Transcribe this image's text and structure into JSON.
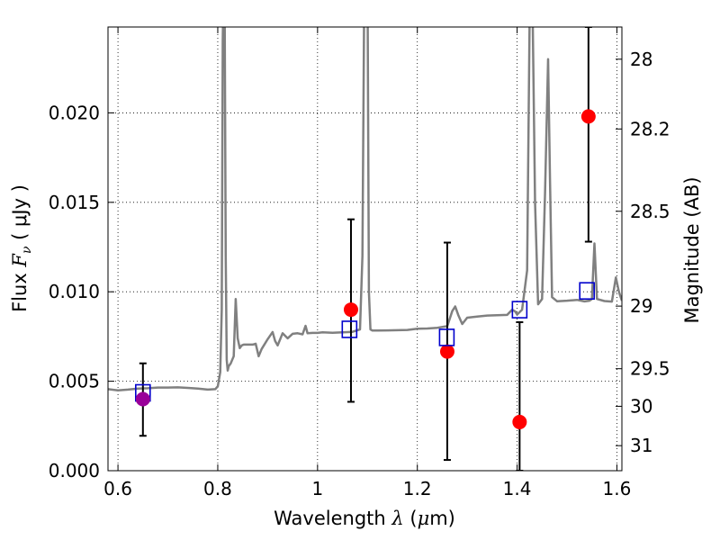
{
  "chart_data": {
    "type": "scatter",
    "title": "",
    "xlabel": {
      "prefix": "Wavelength  ",
      "sym": "λ",
      "open": " (",
      "mu": "μ",
      "unit": "m)"
    },
    "ylabel": {
      "prefix": "Flux  ",
      "sym": "F",
      "sub": "ν",
      "unit": "  ( μJy )"
    },
    "y2label": "Magnitude (AB)",
    "xlim": [
      0.58,
      1.61
    ],
    "ylim": [
      0.0,
      0.0248
    ],
    "grid": true,
    "x_ticks": [
      0.6,
      0.8,
      1.0,
      1.2,
      1.4,
      1.6
    ],
    "x_tick_labels": [
      "0.6",
      "0.8",
      "1",
      "1.2",
      "1.4",
      "1.6"
    ],
    "y_ticks": [
      0.0,
      0.005,
      0.01,
      0.015,
      0.02
    ],
    "y_tick_labels": [
      "0.000",
      "0.005",
      "0.010",
      "0.015",
      "0.020"
    ],
    "y2_ticks": [
      28,
      28.2,
      28.5,
      29,
      29.5,
      30,
      31
    ],
    "y2_tick_labels": [
      "28",
      "28.2",
      "28.5",
      "29",
      "29.5",
      "30",
      "31"
    ],
    "y2_tick_flux": [
      0.023,
      0.0191,
      0.0145,
      0.0092,
      0.0057,
      0.0036,
      0.0014
    ],
    "colors": {
      "spectrum": "#808080",
      "observed": "#ff0000",
      "model": "#0000cc",
      "blend": "#990099",
      "errorbar": "#000000"
    },
    "series": [
      {
        "kind": "spectrum",
        "x": [
          0.58,
          0.6,
          0.62,
          0.64,
          0.66,
          0.68,
          0.7,
          0.72,
          0.74,
          0.76,
          0.78,
          0.795,
          0.8,
          0.805,
          0.808,
          0.81,
          0.812,
          0.814,
          0.816,
          0.818,
          0.82,
          0.822,
          0.826,
          0.832,
          0.836,
          0.84,
          0.844,
          0.848,
          0.852,
          0.86,
          0.87,
          0.876,
          0.882,
          0.888,
          0.9,
          0.91,
          0.915,
          0.92,
          0.93,
          0.94,
          0.95,
          0.96,
          0.97,
          0.976,
          0.98,
          0.99,
          1.0,
          1.01,
          1.03,
          1.05,
          1.07,
          1.085,
          1.09,
          1.094,
          1.097,
          1.1,
          1.103,
          1.106,
          1.11,
          1.12,
          1.14,
          1.16,
          1.18,
          1.2,
          1.22,
          1.24,
          1.26,
          1.27,
          1.276,
          1.282,
          1.29,
          1.3,
          1.32,
          1.34,
          1.36,
          1.38,
          1.39,
          1.396,
          1.4,
          1.41,
          1.42,
          1.426,
          1.43,
          1.436,
          1.442,
          1.45,
          1.456,
          1.462,
          1.466,
          1.47,
          1.48,
          1.5,
          1.52,
          1.535,
          1.545,
          1.55,
          1.555,
          1.56,
          1.575,
          1.59,
          1.598,
          1.604,
          1.61
        ],
        "y": [
          0.00456,
          0.00449,
          0.00453,
          0.00459,
          0.00461,
          0.00465,
          0.00465,
          0.00466,
          0.00463,
          0.00459,
          0.00453,
          0.00456,
          0.00472,
          0.0055,
          0.009,
          0.024,
          0.028,
          0.025,
          0.012,
          0.0062,
          0.0056,
          0.00585,
          0.006,
          0.0064,
          0.0096,
          0.0074,
          0.00685,
          0.007,
          0.00705,
          0.00705,
          0.00705,
          0.0071,
          0.0064,
          0.0068,
          0.00735,
          0.00775,
          0.00725,
          0.007,
          0.00768,
          0.0074,
          0.00765,
          0.00768,
          0.00762,
          0.0081,
          0.00768,
          0.0077,
          0.0077,
          0.00773,
          0.00771,
          0.00773,
          0.00776,
          0.0079,
          0.012,
          0.028,
          0.028,
          0.028,
          0.01,
          0.0079,
          0.00783,
          0.00783,
          0.00784,
          0.00785,
          0.00787,
          0.00794,
          0.00795,
          0.00799,
          0.00808,
          0.00892,
          0.00918,
          0.0087,
          0.0082,
          0.00855,
          0.00861,
          0.00867,
          0.00869,
          0.00871,
          0.009,
          0.0089,
          0.00873,
          0.009,
          0.0112,
          0.028,
          0.028,
          0.015,
          0.0093,
          0.0096,
          0.0155,
          0.023,
          0.016,
          0.0097,
          0.00947,
          0.0095,
          0.00955,
          0.00946,
          0.0095,
          0.0096,
          0.0127,
          0.0096,
          0.00948,
          0.00945,
          0.0108,
          0.01,
          0.0095
        ]
      },
      {
        "kind": "observed",
        "name": "",
        "x": [
          1.067,
          1.26,
          1.405,
          1.543
        ],
        "y": [
          0.009,
          0.00666,
          0.00272,
          0.0198
        ],
        "err_low": [
          0.00385,
          0.0006,
          0.0,
          0.0128
        ],
        "err_high": [
          0.01405,
          0.01275,
          0.0083,
          0.0248
        ]
      },
      {
        "kind": "model",
        "name": "",
        "x": [
          0.65,
          1.064,
          1.259,
          1.405,
          1.54
        ],
        "y": [
          0.00435,
          0.0079,
          0.00745,
          0.009,
          0.01005
        ]
      },
      {
        "kind": "blend",
        "name": "",
        "x": [
          0.65
        ],
        "y": [
          0.004
        ],
        "err_low": [
          0.00195
        ],
        "err_high": [
          0.006
        ]
      }
    ]
  }
}
